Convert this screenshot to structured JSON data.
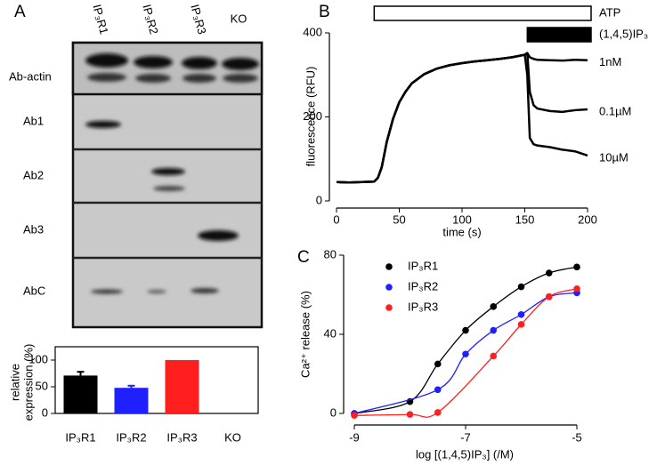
{
  "panel_labels": [
    "A",
    "B",
    "C"
  ],
  "blot": {
    "columns": [
      "IP₃R1",
      "IP₃R2",
      "IP₃R3",
      "KO"
    ],
    "rows": [
      "Ab-actin",
      "Ab1",
      "Ab2",
      "Ab3",
      "AbC"
    ]
  },
  "chart_data": [
    {
      "type": "bar",
      "ylabel": [
        "relative",
        "expression (%)"
      ],
      "categories": [
        "IP₃R1",
        "IP₃R2",
        "IP₃R3",
        "KO"
      ],
      "values": [
        71,
        48,
        100,
        null
      ],
      "errors": [
        7,
        4,
        null,
        null
      ],
      "colors": [
        "#000000",
        "#1f1fff",
        "#ff1f1f",
        "#000000"
      ],
      "ylim": [
        0,
        125
      ],
      "yticks": [
        0,
        50,
        100
      ]
    },
    {
      "type": "line",
      "xlabel": "time (s)",
      "ylabel": "fluorescence (RFU)",
      "x": [
        0,
        10,
        20,
        30,
        33,
        36,
        40,
        45,
        50,
        55,
        60,
        70,
        80,
        90,
        100,
        110,
        120,
        130,
        140,
        150,
        152,
        154,
        157,
        160,
        170,
        180,
        190,
        200
      ],
      "series": [
        {
          "name": "1nM",
          "color": "#000000",
          "values": [
            45,
            44,
            45,
            46,
            55,
            80,
            140,
            195,
            235,
            260,
            280,
            302,
            315,
            323,
            328,
            332,
            335,
            338,
            342,
            348,
            352,
            342,
            338,
            336,
            335,
            334,
            336,
            335
          ]
        },
        {
          "name": "0.1µM",
          "color": "#000000",
          "values": [
            45,
            44,
            45,
            46,
            55,
            80,
            140,
            195,
            235,
            260,
            280,
            302,
            315,
            323,
            328,
            332,
            335,
            338,
            342,
            348,
            352,
            260,
            228,
            220,
            214,
            212,
            216,
            218
          ]
        },
        {
          "name": "10µM",
          "color": "#000000",
          "values": [
            45,
            44,
            45,
            46,
            55,
            80,
            140,
            195,
            235,
            260,
            280,
            302,
            315,
            323,
            328,
            332,
            335,
            338,
            342,
            348,
            300,
            150,
            135,
            132,
            128,
            122,
            118,
            108
          ]
        }
      ],
      "xlim": [
        0,
        200
      ],
      "ylim": [
        0,
        400
      ],
      "xticks": [
        0,
        50,
        100,
        150,
        200
      ],
      "yticks": [
        0,
        200,
        400
      ],
      "annotations": [
        {
          "label": "ATP",
          "start": 30,
          "end": 200,
          "filled": false
        },
        {
          "label": "(1,4,5)IP₃",
          "start": 152,
          "end": 200,
          "filled": true
        }
      ]
    },
    {
      "type": "scatter",
      "xlabel": "log [(1,4,5)IP₃] (/M)",
      "ylabel": "Ca²⁺ release (%)",
      "x": [
        -9,
        -8,
        -7.5,
        -7,
        -6.5,
        -6,
        -5.5,
        -5
      ],
      "series": [
        {
          "name": "IP₃R1",
          "color": "#000000",
          "values": [
            0,
            6,
            25,
            42,
            54,
            64,
            71,
            74
          ]
        },
        {
          "name": "IP₃R2",
          "color": "#1f1fff",
          "values": [
            0,
            null,
            12,
            30,
            42,
            50,
            59,
            61
          ]
        },
        {
          "name": "IP₃R3",
          "color": "#ff1f1f",
          "values": [
            -1,
            -0.5,
            0.5,
            null,
            29,
            45,
            59,
            63
          ]
        }
      ],
      "xlim": [
        -9,
        -5
      ],
      "ylim": [
        0,
        80
      ],
      "xticks": [
        -9,
        -7,
        -5
      ],
      "yticks": [
        0,
        40,
        80
      ]
    }
  ]
}
